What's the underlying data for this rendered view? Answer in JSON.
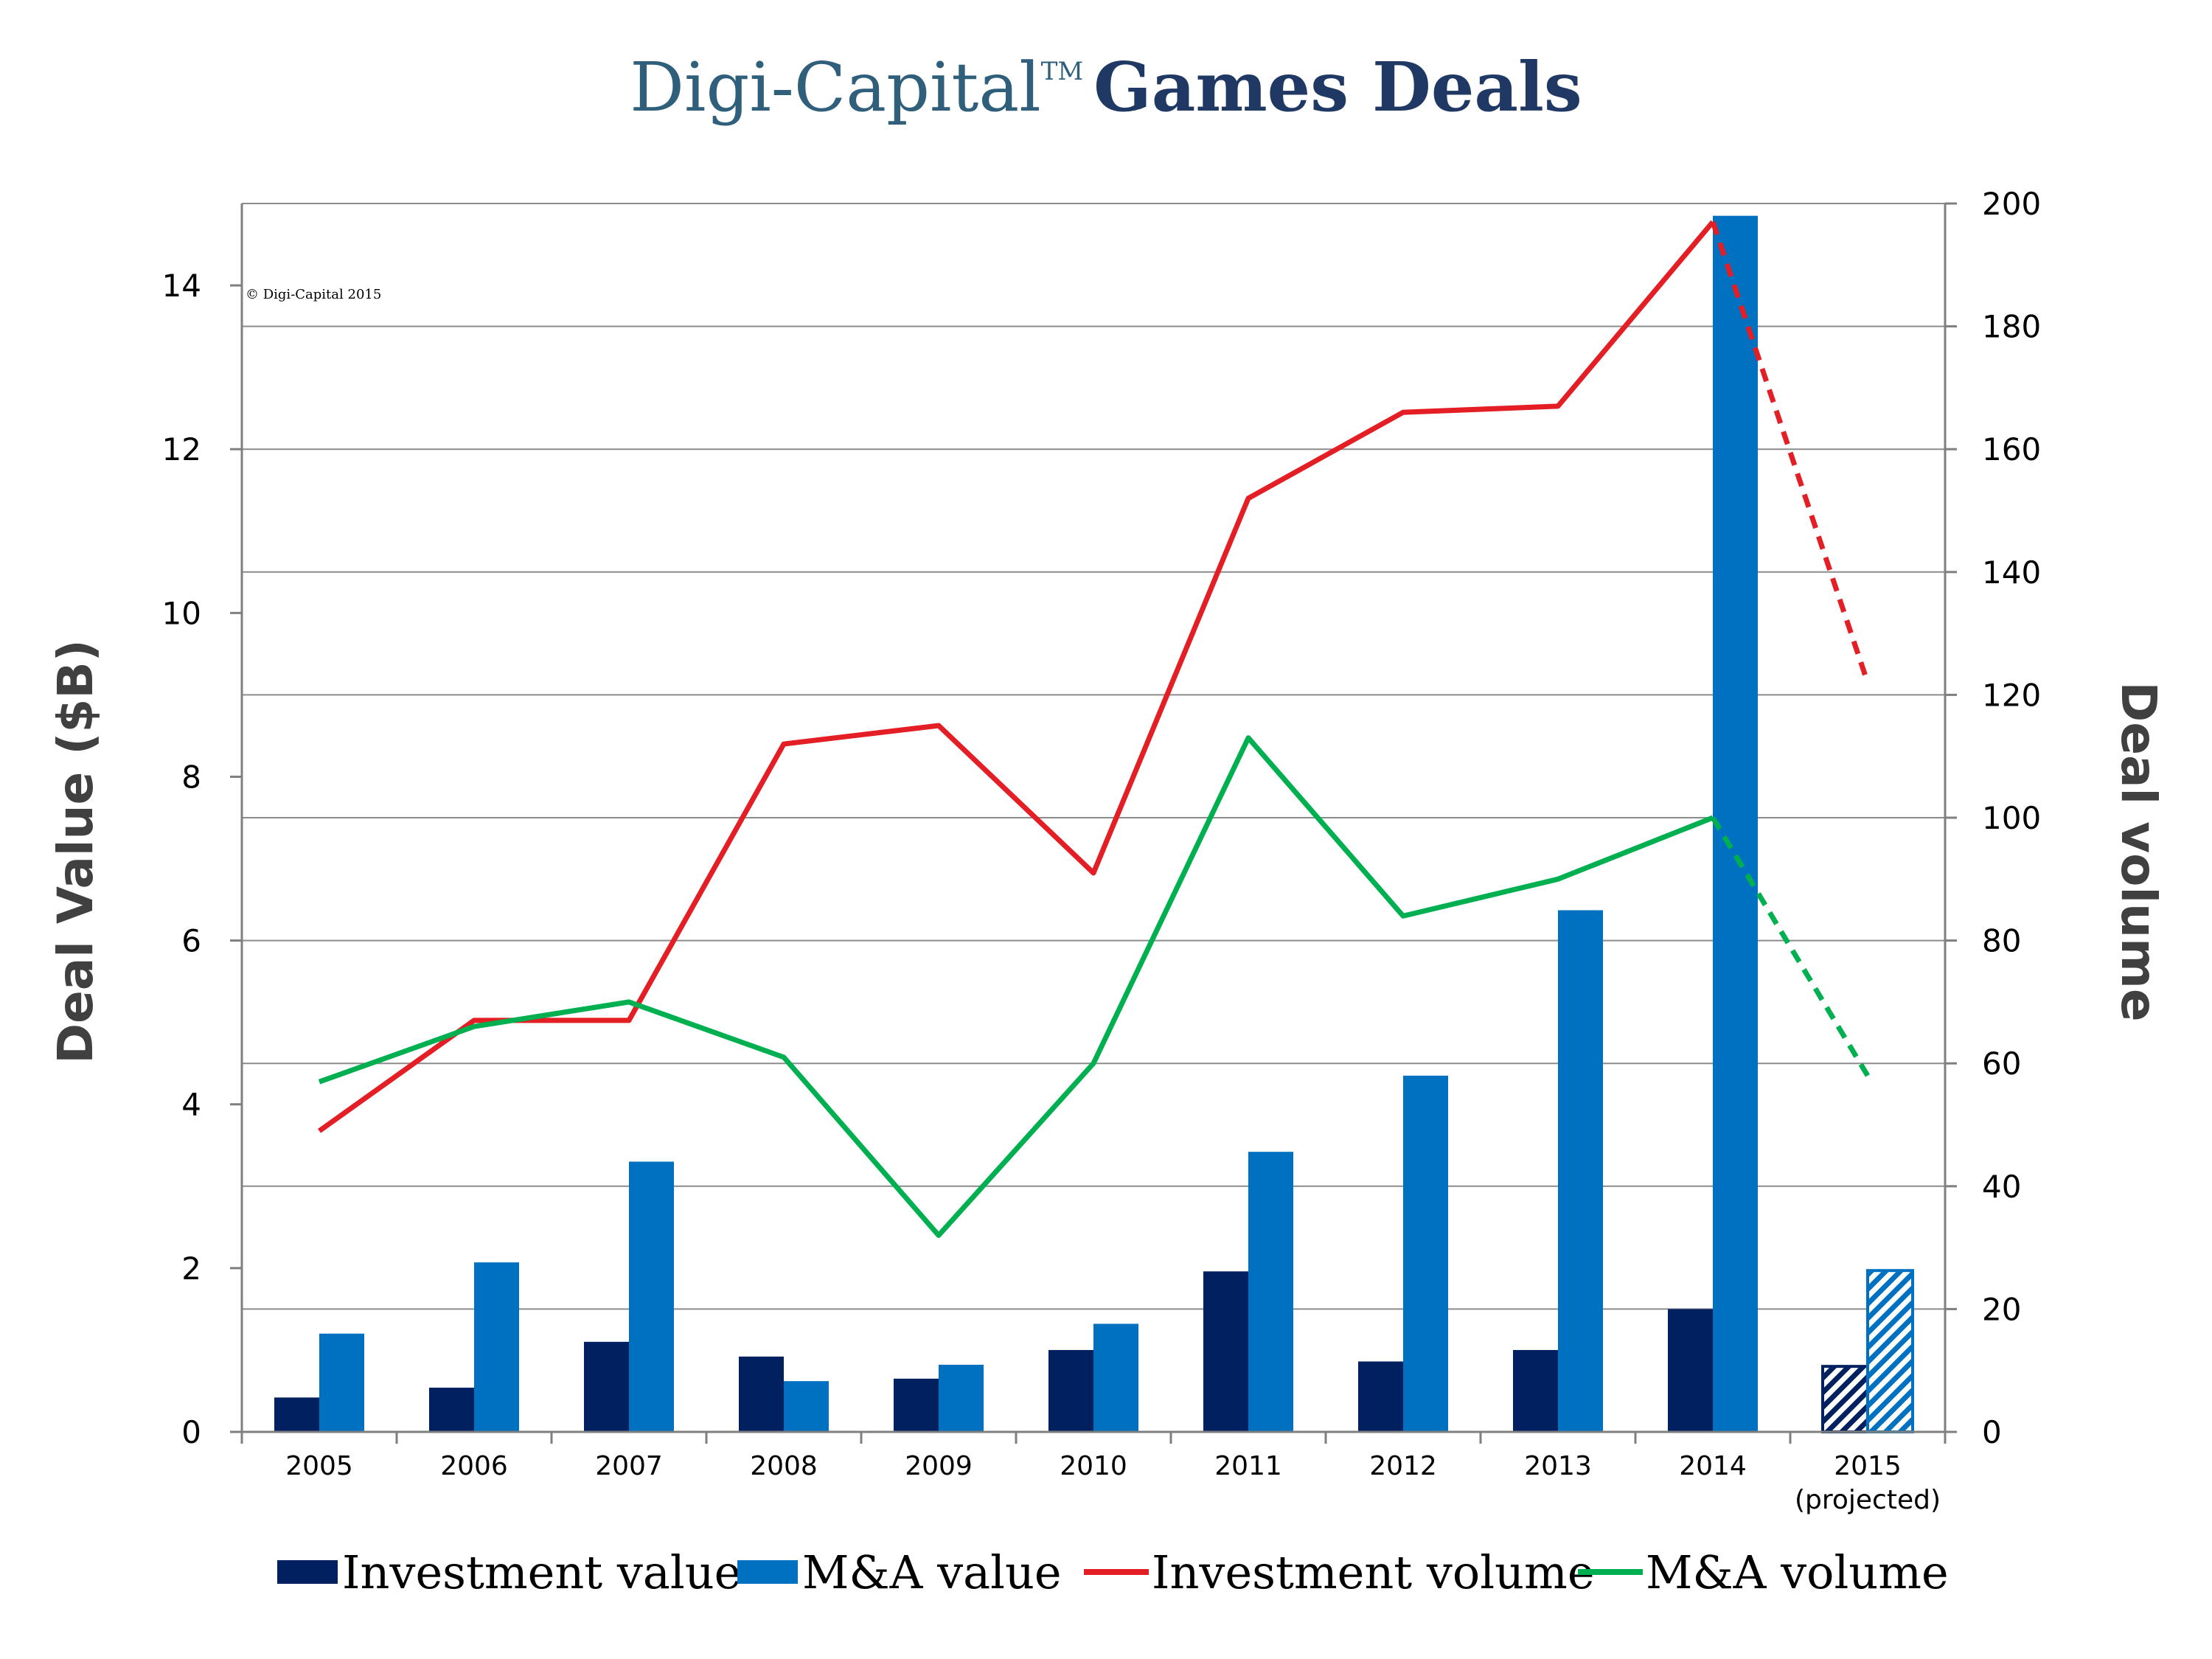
{
  "title": {
    "brand": "Digi-Capital",
    "trademark": "TM",
    "main": "Games Deals",
    "brand_color": "#2f5f7a",
    "main_color": "#1f3864"
  },
  "copyright": "© Digi-Capital 2015",
  "chart_data": {
    "type": "bar",
    "categories": [
      "2005",
      "2006",
      "2007",
      "2008",
      "2009",
      "2010",
      "2011",
      "2012",
      "2013",
      "2014",
      "2015"
    ],
    "category_sublabels": {
      "2015": "(projected)"
    },
    "ylabel": "Deal Value ($B)",
    "y2label": "Deal volume",
    "ylim": [
      0,
      15
    ],
    "y_ticks": [
      0,
      2,
      4,
      6,
      8,
      10,
      12,
      14
    ],
    "y2lim": [
      0,
      200
    ],
    "y2_ticks": [
      0,
      20,
      40,
      60,
      80,
      100,
      120,
      140,
      160,
      180,
      200
    ],
    "grid": true,
    "legend_position": "bottom",
    "bar_series": [
      {
        "name": "Investment value",
        "axis": "left",
        "color": "#002060",
        "values": [
          0.42,
          0.54,
          1.1,
          0.92,
          0.65,
          1.0,
          1.96,
          0.86,
          1.0,
          1.5,
          0.8
        ]
      },
      {
        "name": "M&A value",
        "axis": "left",
        "color": "#0070c0",
        "values": [
          1.2,
          2.07,
          3.3,
          0.62,
          0.82,
          1.32,
          3.42,
          4.35,
          6.37,
          14.85,
          1.97
        ]
      }
    ],
    "line_series": [
      {
        "name": "Investment volume",
        "axis": "right",
        "color": "#e31e24",
        "values": [
          49,
          67,
          67,
          112,
          115,
          91,
          152,
          166,
          167,
          197,
          122
        ]
      },
      {
        "name": "M&A volume",
        "axis": "right",
        "color": "#00b050",
        "values": [
          57,
          66,
          70,
          61,
          32,
          60,
          113,
          84,
          90,
          100,
          58
        ]
      }
    ],
    "projected_category": "2015"
  }
}
